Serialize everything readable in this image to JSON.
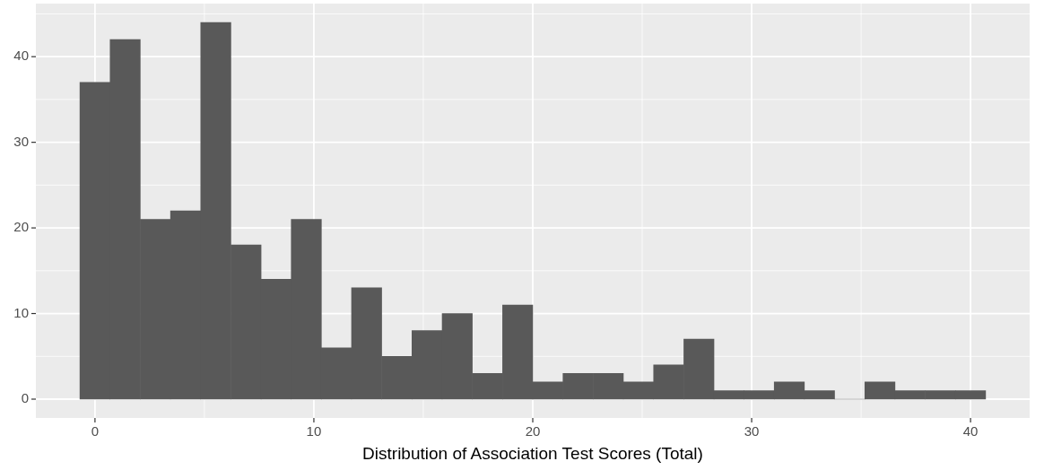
{
  "chart_data": {
    "type": "histogram",
    "xlabel": "Distribution of Association Test Scores (Total)",
    "bins": [
      -0.69,
      0.69,
      2.07,
      3.45,
      4.83,
      6.21,
      7.59,
      8.97,
      10.34,
      11.72,
      13.1,
      14.48,
      15.86,
      17.24,
      18.62,
      20.0,
      21.38,
      22.76,
      24.14,
      25.52,
      26.9,
      28.28,
      29.66,
      31.03,
      32.41,
      33.79,
      35.17,
      36.55,
      37.93,
      39.31,
      40.69
    ],
    "values": [
      37,
      42,
      21,
      22,
      44,
      18,
      14,
      21,
      6,
      13,
      5,
      8,
      10,
      3,
      11,
      2,
      3,
      3,
      2,
      4,
      7,
      1,
      1,
      2,
      1,
      0,
      2,
      1,
      1,
      1
    ],
    "color": "#595959",
    "xlim": [
      -2.7,
      42.7
    ],
    "xticks": [
      0,
      {
        "value": 5,
        "label": null
      },
      10,
      {
        "value": 15,
        "label": null
      },
      20,
      {
        "value": 25,
        "label": null
      },
      30,
      {
        "value": 35,
        "label": null
      },
      40
    ],
    "ylim": [
      -2.2,
      46.2
    ],
    "yticks": [
      0,
      {
        "value": 5,
        "label": null
      },
      10,
      {
        "value": 15,
        "label": null
      },
      20,
      {
        "value": 25,
        "label": null
      },
      30,
      {
        "value": 35,
        "label": null
      },
      40,
      {
        "value": 45,
        "label": null
      }
    ],
    "grid": true
  }
}
